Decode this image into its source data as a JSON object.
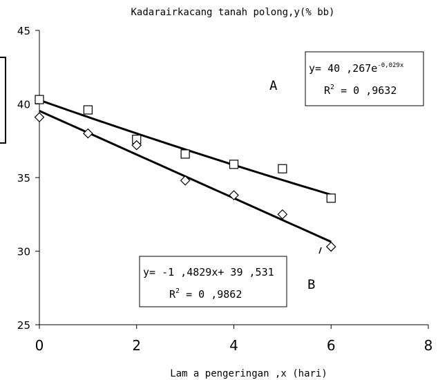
{
  "chart_data": {
    "type": "scatter",
    "title": "Kadarairkacang tanah polong,y(% bb)",
    "xlabel": "Lam a pengeringan ,x (hari)",
    "ylabel": "",
    "xlim": [
      0,
      8
    ],
    "ylim": [
      25,
      45
    ],
    "x_ticks": [
      "0",
      "2",
      "4",
      "6",
      "8"
    ],
    "y_ticks": [
      "25",
      "30",
      "35",
      "40",
      "45"
    ],
    "grid": false,
    "series": [
      {
        "name": "A",
        "marker": "square",
        "x": [
          0,
          1,
          2,
          3,
          4,
          5,
          6
        ],
        "y": [
          40.3,
          39.6,
          37.6,
          36.6,
          35.9,
          35.6,
          33.6
        ],
        "trendline": {
          "type": "exponential",
          "a": 40.267,
          "b": -0.029
        }
      },
      {
        "name": "B",
        "marker": "diamond",
        "x": [
          0,
          1,
          2,
          3,
          4,
          5,
          6
        ],
        "y": [
          39.1,
          38.0,
          37.2,
          34.8,
          33.8,
          32.5,
          30.3
        ],
        "trendline": {
          "type": "linear",
          "slope": -1.4829,
          "intercept": 39.531
        }
      }
    ],
    "annotations": {
      "A": {
        "label": "A",
        "eq_prefix": "y= 40 ,267e",
        "eq_exp": "-0,029x",
        "r2_prefix": "R",
        "r2_sup": "2",
        "r2_suffix": " = 0 ,9632"
      },
      "B": {
        "label": "B",
        "eq": "y= -1 ,4829x+ 39 ,531",
        "r2_prefix": "R",
        "r2_sup": "2",
        "r2_suffix": " = 0 ,9862"
      }
    },
    "colors": {
      "axis": "#000000",
      "marker": "#000000",
      "line": "#000000",
      "background": "#ffffff"
    }
  }
}
